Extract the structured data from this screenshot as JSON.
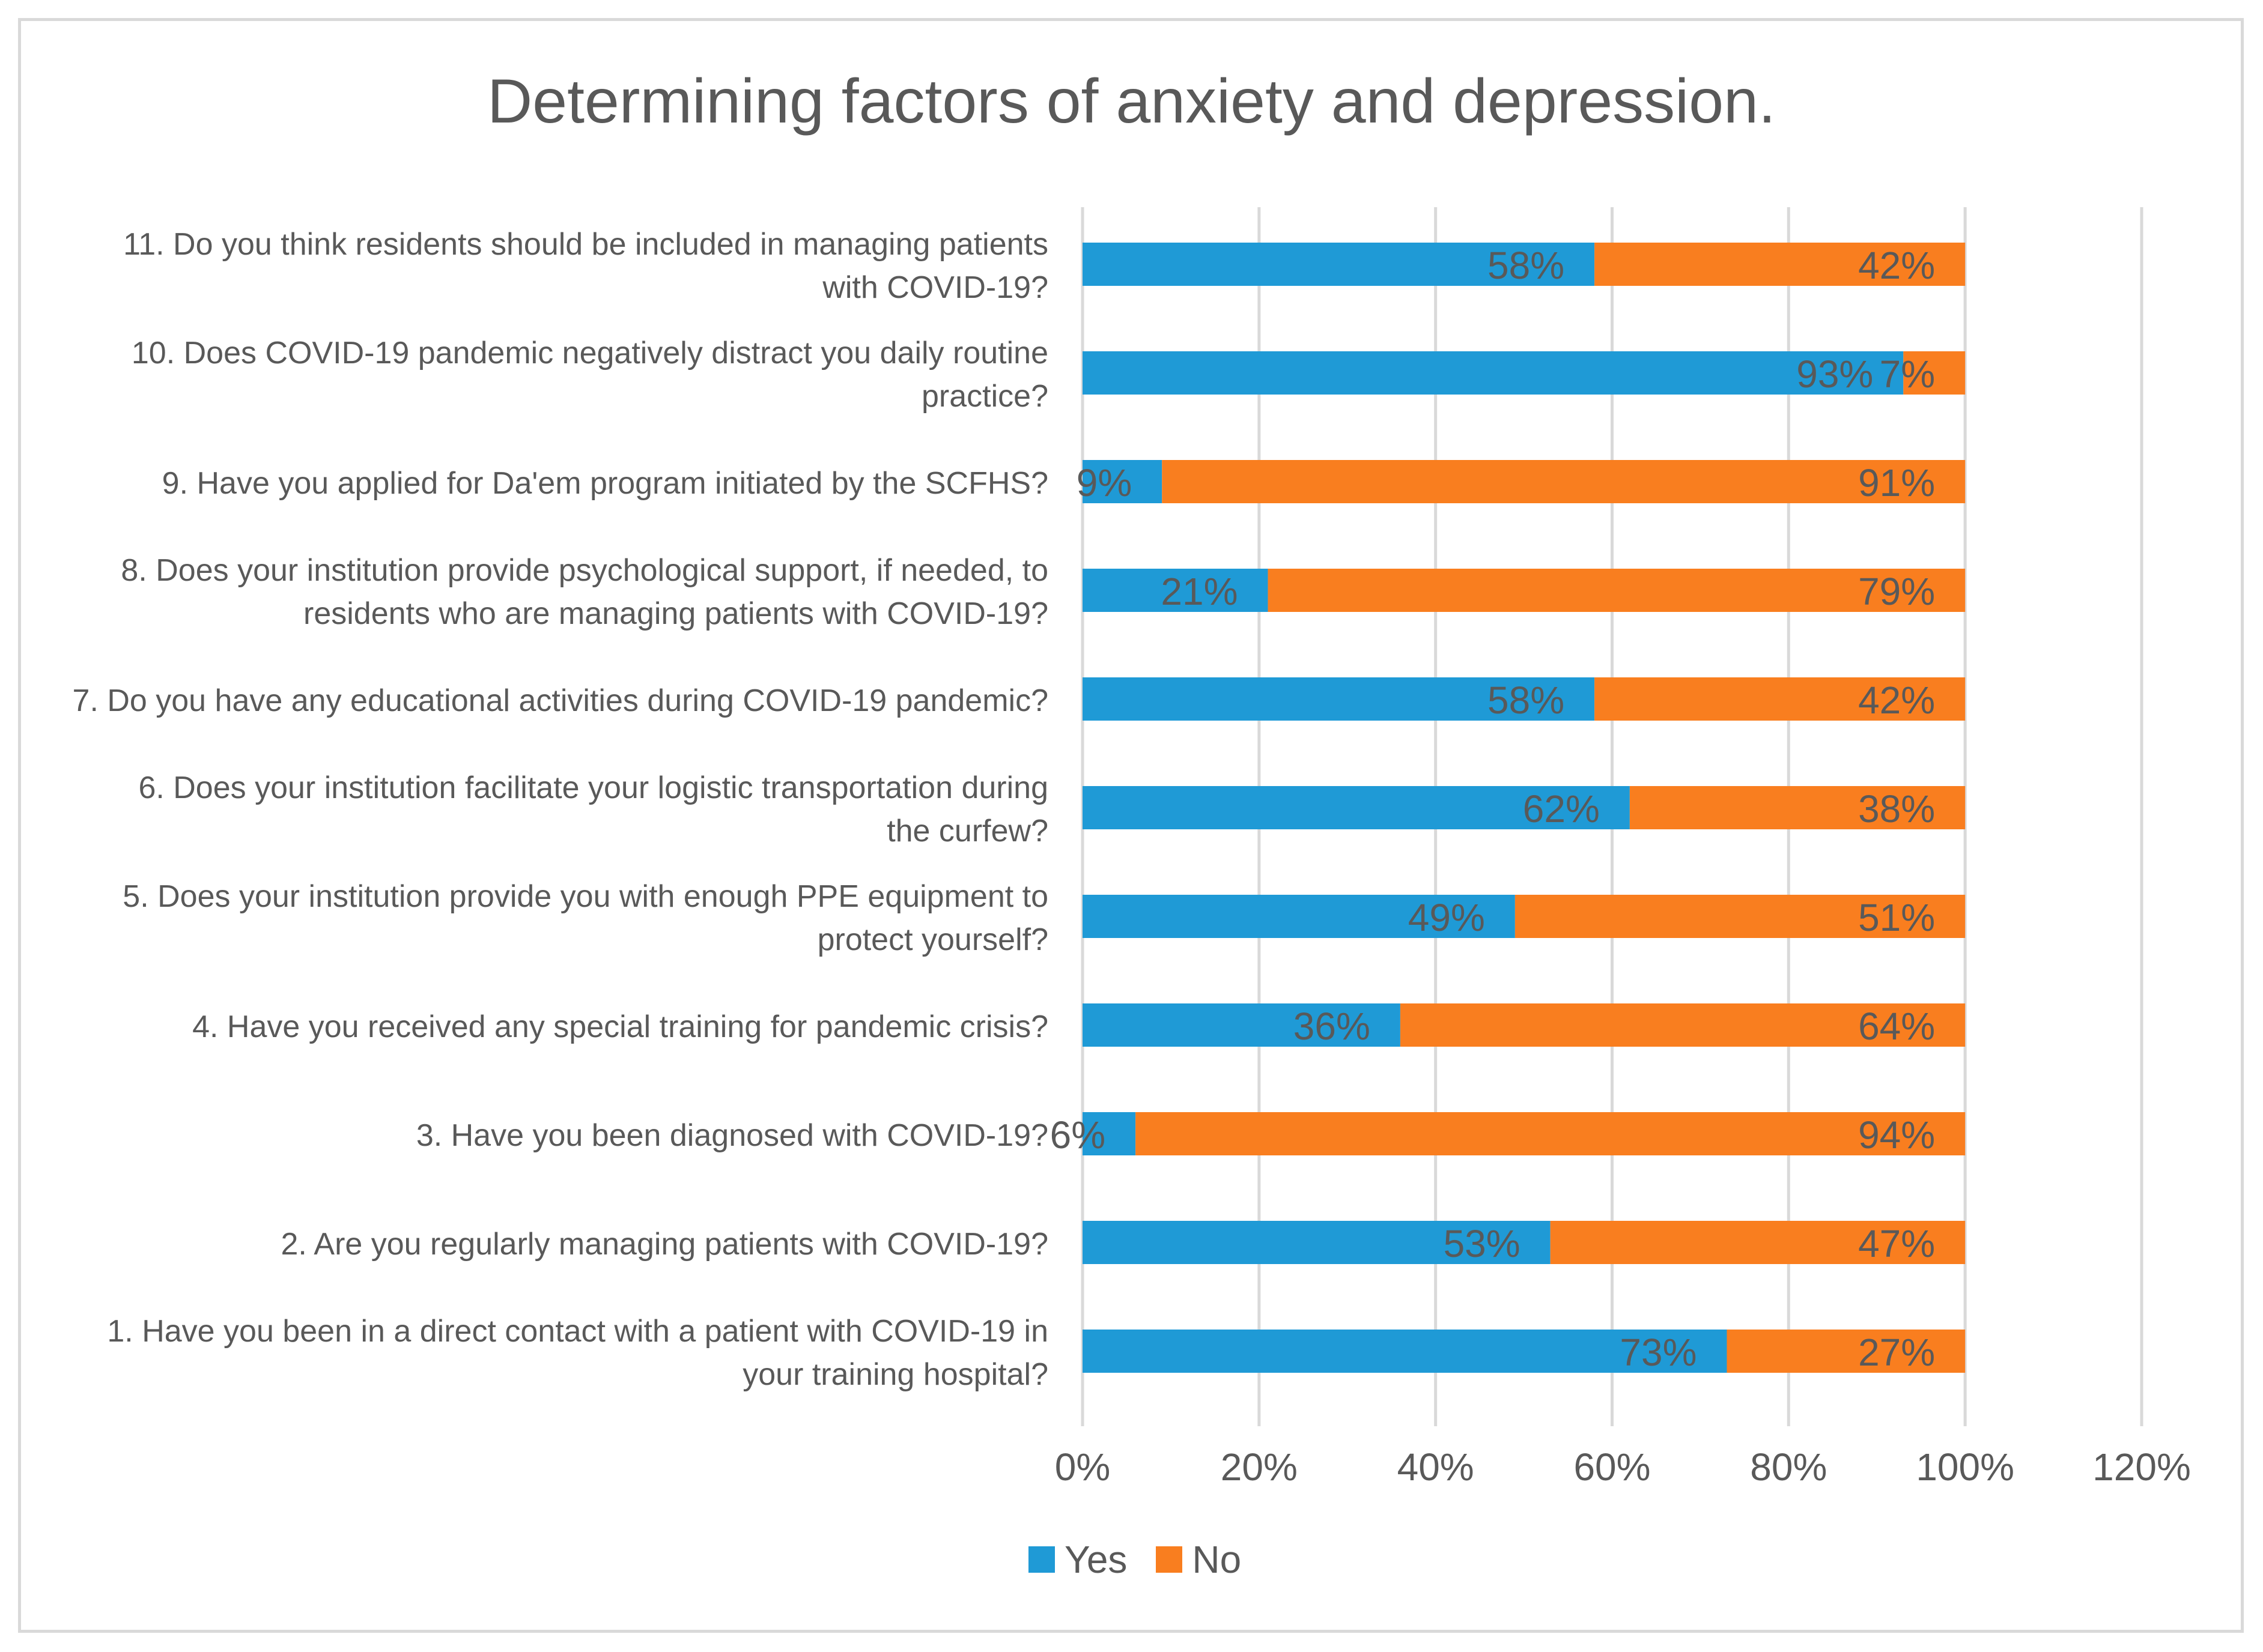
{
  "colors": {
    "yes": "#1f9ad6",
    "no": "#f97e1f",
    "grid": "#d9d9d9",
    "text": "#595959",
    "label_text": "#595959"
  },
  "chart_data": {
    "type": "bar",
    "orientation": "horizontal",
    "stacked": true,
    "title": "Determining factors of anxiety and depression.",
    "xlim": [
      0,
      120
    ],
    "x_ticks": [
      "0%",
      "20%",
      "40%",
      "60%",
      "80%",
      "100%",
      "120%"
    ],
    "x_tick_values": [
      0,
      20,
      40,
      60,
      80,
      100,
      120
    ],
    "grid": true,
    "legend_position": "bottom",
    "categories": [
      [
        "11. Do you think residents should be included in managing patients",
        "with COVID-19?"
      ],
      [
        "10. Does COVID-19 pandemic negatively distract you daily routine",
        "practice?"
      ],
      [
        "9.  Have you applied for Da'em program initiated by the SCFHS?"
      ],
      [
        "8. Does your institution provide psychological support, if needed, to",
        "residents who are managing patients with COVID-19?"
      ],
      [
        "7. Do you have any educational activities during COVID-19 pandemic?"
      ],
      [
        "6. Does your institution facilitate your logistic transportation during",
        "the curfew?"
      ],
      [
        "5. Does your institution provide you with enough PPE equipment to",
        "protect yourself?"
      ],
      [
        "4. Have you received any special training for pandemic crisis?"
      ],
      [
        "3. Have you been diagnosed with COVID-19?"
      ],
      [
        "2. Are you regularly managing patients with COVID-19?"
      ],
      [
        "1. Have you been in a direct contact with a patient with COVID-19 in",
        "your training hospital?"
      ]
    ],
    "series": [
      {
        "name": "Yes",
        "values": [
          58,
          93,
          9,
          21,
          58,
          62,
          49,
          36,
          6,
          53,
          73
        ],
        "labels": [
          "58%",
          "93%",
          "9%",
          "21%",
          "58%",
          "62%",
          "49%",
          "36%",
          "6%",
          "53%",
          "73%"
        ]
      },
      {
        "name": "No",
        "values": [
          42,
          7,
          91,
          79,
          42,
          38,
          51,
          64,
          94,
          47,
          27
        ],
        "labels": [
          "42%",
          "7%",
          "91%",
          "79%",
          "42%",
          "38%",
          "51%",
          "64%",
          "94%",
          "47%",
          "27%"
        ]
      }
    ]
  }
}
